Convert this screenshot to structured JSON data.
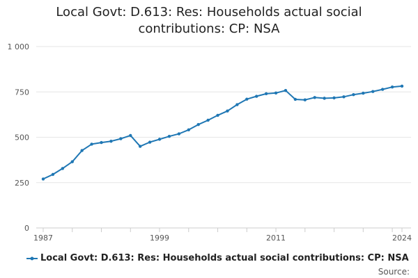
{
  "title_line1": "Local Govt: D.613: Res: Households actual social",
  "title_line2": "contributions: CP: NSA",
  "source_label": "Source:",
  "colors": {
    "series": "#1f77b4",
    "grid": "#e6e6e6",
    "axis": "#cccccc"
  },
  "chart_data": {
    "type": "line",
    "title": "Local Govt: D.613: Res: Households actual social contributions: CP: NSA",
    "xlabel": "",
    "ylabel": "",
    "grid": true,
    "legend_position": "bottom",
    "ylim": [
      0,
      1000
    ],
    "xlim": [
      1987,
      2024
    ],
    "y_ticks": [
      0,
      250,
      500,
      750,
      1000
    ],
    "y_tick_labels": [
      "0",
      "250",
      "500",
      "750",
      "1 000"
    ],
    "x_ticks": [
      1987,
      1999,
      2011,
      2024
    ],
    "x_tick_labels": [
      "1987",
      "1999",
      "2011",
      "2024"
    ],
    "series": [
      {
        "name": "Local Govt: D.613: Res: Households actual social contributions: CP: NSA",
        "x": [
          1987,
          1988,
          1989,
          1990,
          1991,
          1992,
          1993,
          1994,
          1995,
          1996,
          1997,
          1998,
          1999,
          2000,
          2001,
          2002,
          2003,
          2004,
          2005,
          2006,
          2007,
          2008,
          2009,
          2010,
          2011,
          2012,
          2013,
          2014,
          2015,
          2016,
          2017,
          2018,
          2019,
          2020,
          2021,
          2022,
          2023,
          2024
        ],
        "values": [
          270,
          295,
          328,
          365,
          427,
          462,
          471,
          478,
          492,
          510,
          450,
          473,
          489,
          505,
          519,
          541,
          570,
          594,
          621,
          645,
          680,
          710,
          726,
          740,
          744,
          758,
          709,
          706,
          719,
          715,
          717,
          723,
          735,
          743,
          752,
          764,
          777,
          782
        ]
      }
    ]
  }
}
